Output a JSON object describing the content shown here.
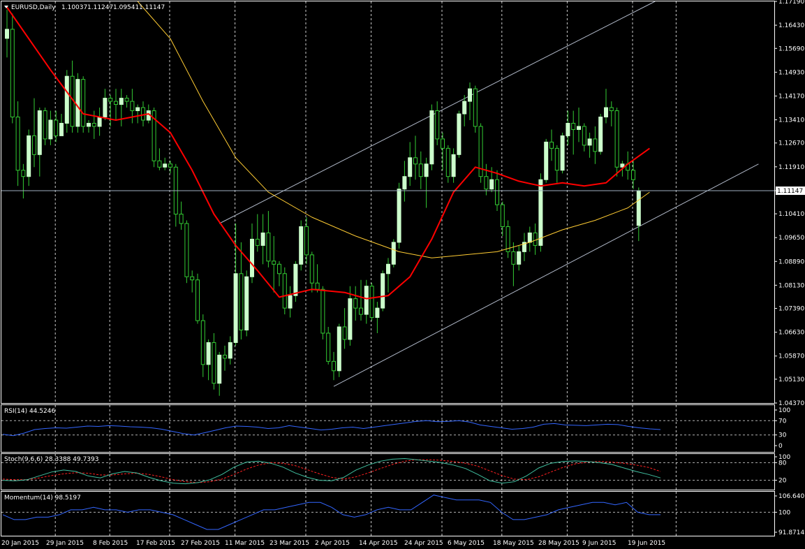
{
  "chart_data": {
    "type": "candlestick",
    "symbol_title": "EURUSD,Daily",
    "ohlc_readout": [
      "1.10037",
      "1.11247",
      "1.09541",
      "1.11147"
    ],
    "current_price": "1.11147",
    "y_ticks": [
      "1.17190",
      "1.16430",
      "1.15690",
      "1.14930",
      "1.14170",
      "1.13410",
      "1.12670",
      "1.11910",
      "1.11147",
      "1.10410",
      "1.09650",
      "1.08890",
      "1.08130",
      "1.07390",
      "1.06630",
      "1.05870",
      "1.05130",
      "1.04370"
    ],
    "y_range": [
      1.0437,
      1.1719
    ],
    "x_labels": [
      "20 Jan 2015",
      "29 Jan 2015",
      "8 Feb 2015",
      "17 Feb 2015",
      "27 Feb 2015",
      "11 Mar 2015",
      "23 Mar 2015",
      "2 Apr 2015",
      "14 Apr 2015",
      "24 Apr 2015",
      "6 May 2015",
      "18 May 2015",
      "28 May 2015",
      "9 Jun 2015",
      "19 Jun 2015"
    ],
    "bull_color": "#ccffcc",
    "bear_color": "#ccffcc",
    "wick_color": "#33cc33",
    "grid_color": "#ffffff",
    "ma_fast_color": "#ff0000",
    "ma_slow_color": "#ffcc33",
    "channel_color": "#b0b8c8",
    "candles": [
      [
        1.1601,
        1.1693,
        1.154,
        1.163
      ],
      [
        1.163,
        1.168,
        1.133,
        1.135
      ],
      [
        1.135,
        1.14,
        1.113,
        1.118
      ],
      [
        1.118,
        1.12,
        1.109,
        1.116
      ],
      [
        1.116,
        1.131,
        1.113,
        1.129
      ],
      [
        1.129,
        1.141,
        1.119,
        1.123
      ],
      [
        1.123,
        1.138,
        1.116,
        1.137
      ],
      [
        1.137,
        1.138,
        1.126,
        1.128
      ],
      [
        1.128,
        1.137,
        1.126,
        1.134
      ],
      [
        1.134,
        1.137,
        1.127,
        1.129
      ],
      [
        1.129,
        1.136,
        1.129,
        1.133
      ],
      [
        1.133,
        1.15,
        1.13,
        1.148
      ],
      [
        1.148,
        1.153,
        1.13,
        1.132
      ],
      [
        1.132,
        1.149,
        1.13,
        1.147
      ],
      [
        1.147,
        1.148,
        1.13,
        1.132
      ],
      [
        1.132,
        1.134,
        1.13,
        1.133
      ],
      [
        1.133,
        1.137,
        1.128,
        1.132
      ],
      [
        1.132,
        1.138,
        1.129,
        1.135
      ],
      [
        1.135,
        1.144,
        1.134,
        1.141
      ],
      [
        1.141,
        1.142,
        1.132,
        1.14
      ],
      [
        1.14,
        1.144,
        1.134,
        1.139
      ],
      [
        1.139,
        1.144,
        1.132,
        1.141
      ],
      [
        1.141,
        1.142,
        1.138,
        1.14
      ],
      [
        1.14,
        1.144,
        1.133,
        1.137
      ],
      [
        1.137,
        1.139,
        1.133,
        1.138
      ],
      [
        1.138,
        1.14,
        1.132,
        1.134
      ],
      [
        1.134,
        1.139,
        1.133,
        1.137
      ],
      [
        1.137,
        1.138,
        1.119,
        1.121
      ],
      [
        1.121,
        1.125,
        1.118,
        1.119
      ],
      [
        1.119,
        1.122,
        1.118,
        1.12
      ],
      [
        1.12,
        1.121,
        1.117,
        1.119
      ],
      [
        1.119,
        1.12,
        1.1,
        1.104
      ],
      [
        1.104,
        1.108,
        1.099,
        1.101
      ],
      [
        1.101,
        1.102,
        1.082,
        1.084
      ],
      [
        1.084,
        1.086,
        1.079,
        1.083
      ],
      [
        1.083,
        1.085,
        1.069,
        1.07
      ],
      [
        1.07,
        1.072,
        1.052,
        1.056
      ],
      [
        1.056,
        1.064,
        1.051,
        1.063
      ],
      [
        1.063,
        1.066,
        1.048,
        1.05
      ],
      [
        1.05,
        1.06,
        1.046,
        1.059
      ],
      [
        1.059,
        1.062,
        1.054,
        1.058
      ],
      [
        1.058,
        1.065,
        1.056,
        1.063
      ],
      [
        1.063,
        1.101,
        1.062,
        1.085
      ],
      [
        1.085,
        1.095,
        1.064,
        1.067
      ],
      [
        1.067,
        1.086,
        1.065,
        1.084
      ],
      [
        1.084,
        1.101,
        1.082,
        1.096
      ],
      [
        1.096,
        1.104,
        1.092,
        1.094
      ],
      [
        1.094,
        1.104,
        1.088,
        1.098
      ],
      [
        1.098,
        1.105,
        1.087,
        1.089
      ],
      [
        1.089,
        1.097,
        1.079,
        1.088
      ],
      [
        1.088,
        1.089,
        1.081,
        1.085
      ],
      [
        1.085,
        1.087,
        1.072,
        1.074
      ],
      [
        1.074,
        1.081,
        1.071,
        1.078
      ],
      [
        1.078,
        1.089,
        1.076,
        1.088
      ],
      [
        1.088,
        1.102,
        1.086,
        1.1
      ],
      [
        1.1,
        1.103,
        1.088,
        1.091
      ],
      [
        1.091,
        1.092,
        1.079,
        1.082
      ],
      [
        1.082,
        1.088,
        1.079,
        1.08
      ],
      [
        1.08,
        1.081,
        1.064,
        1.066
      ],
      [
        1.066,
        1.068,
        1.056,
        1.057
      ],
      [
        1.057,
        1.06,
        1.051,
        1.054
      ],
      [
        1.054,
        1.069,
        1.052,
        1.068
      ],
      [
        1.068,
        1.074,
        1.061,
        1.064
      ],
      [
        1.064,
        1.081,
        1.062,
        1.077
      ],
      [
        1.077,
        1.081,
        1.07,
        1.074
      ],
      [
        1.074,
        1.083,
        1.07,
        1.072
      ],
      [
        1.072,
        1.083,
        1.069,
        1.081
      ],
      [
        1.081,
        1.082,
        1.07,
        1.071
      ],
      [
        1.071,
        1.076,
        1.066,
        1.074
      ],
      [
        1.074,
        1.086,
        1.073,
        1.085
      ],
      [
        1.085,
        1.09,
        1.079,
        1.088
      ],
      [
        1.088,
        1.096,
        1.087,
        1.095
      ],
      [
        1.095,
        1.114,
        1.093,
        1.112
      ],
      [
        1.112,
        1.121,
        1.108,
        1.116
      ],
      [
        1.116,
        1.127,
        1.113,
        1.122
      ],
      [
        1.122,
        1.129,
        1.115,
        1.12
      ],
      [
        1.12,
        1.124,
        1.112,
        1.116
      ],
      [
        1.116,
        1.122,
        1.106,
        1.12
      ],
      [
        1.12,
        1.139,
        1.118,
        1.137
      ],
      [
        1.137,
        1.14,
        1.126,
        1.128
      ],
      [
        1.128,
        1.13,
        1.118,
        1.125
      ],
      [
        1.125,
        1.126,
        1.114,
        1.116
      ],
      [
        1.116,
        1.125,
        1.114,
        1.123
      ],
      [
        1.123,
        1.137,
        1.122,
        1.136
      ],
      [
        1.136,
        1.142,
        1.132,
        1.14
      ],
      [
        1.14,
        1.146,
        1.134,
        1.144
      ],
      [
        1.144,
        1.145,
        1.13,
        1.132
      ],
      [
        1.132,
        1.133,
        1.114,
        1.116
      ],
      [
        1.116,
        1.12,
        1.11,
        1.112
      ],
      [
        1.112,
        1.119,
        1.111,
        1.115
      ],
      [
        1.115,
        1.118,
        1.105,
        1.107
      ],
      [
        1.107,
        1.108,
        1.097,
        1.1
      ],
      [
        1.1,
        1.102,
        1.09,
        1.092
      ],
      [
        1.092,
        1.095,
        1.081,
        1.088
      ],
      [
        1.088,
        1.094,
        1.086,
        1.092
      ],
      [
        1.092,
        1.098,
        1.089,
        1.095
      ],
      [
        1.095,
        1.1,
        1.092,
        1.098
      ],
      [
        1.098,
        1.101,
        1.091,
        1.094
      ],
      [
        1.094,
        1.117,
        1.092,
        1.115
      ],
      [
        1.115,
        1.128,
        1.114,
        1.127
      ],
      [
        1.127,
        1.131,
        1.121,
        1.125
      ],
      [
        1.125,
        1.126,
        1.114,
        1.118
      ],
      [
        1.118,
        1.13,
        1.117,
        1.129
      ],
      [
        1.129,
        1.137,
        1.126,
        1.133
      ],
      [
        1.133,
        1.137,
        1.123,
        1.131
      ],
      [
        1.131,
        1.138,
        1.127,
        1.132
      ],
      [
        1.132,
        1.133,
        1.124,
        1.126
      ],
      [
        1.126,
        1.13,
        1.122,
        1.128
      ],
      [
        1.128,
        1.132,
        1.12,
        1.124
      ],
      [
        1.124,
        1.136,
        1.123,
        1.135
      ],
      [
        1.135,
        1.144,
        1.133,
        1.138
      ],
      [
        1.138,
        1.14,
        1.132,
        1.137
      ],
      [
        1.137,
        1.138,
        1.116,
        1.119
      ],
      [
        1.119,
        1.121,
        1.116,
        1.12
      ],
      [
        1.12,
        1.124,
        1.115,
        1.118
      ],
      [
        1.118,
        1.121,
        1.112,
        1.115
      ],
      [
        1.1004,
        1.1125,
        1.0954,
        1.1115
      ]
    ],
    "ma_fast": [
      [
        0,
        1.17
      ],
      [
        8,
        1.15
      ],
      [
        14,
        1.136
      ],
      [
        20,
        1.134
      ],
      [
        26,
        1.136
      ],
      [
        30,
        1.13
      ],
      [
        34,
        1.118
      ],
      [
        38,
        1.104
      ],
      [
        42,
        1.094
      ],
      [
        46,
        1.086
      ],
      [
        50,
        1.0775
      ],
      [
        56,
        1.08
      ],
      [
        62,
        1.079
      ],
      [
        66,
        1.077
      ],
      [
        70,
        1.078
      ],
      [
        74,
        1.084
      ],
      [
        78,
        1.096
      ],
      [
        82,
        1.111
      ],
      [
        86,
        1.119
      ],
      [
        90,
        1.117
      ],
      [
        94,
        1.1145
      ],
      [
        98,
        1.113
      ],
      [
        102,
        1.114
      ],
      [
        106,
        1.113
      ],
      [
        110,
        1.114
      ],
      [
        114,
        1.12
      ],
      [
        118,
        1.125
      ]
    ],
    "ma_slow": [
      [
        24,
        1.1719
      ],
      [
        30,
        1.16
      ],
      [
        36,
        1.14
      ],
      [
        42,
        1.122
      ],
      [
        48,
        1.111
      ],
      [
        56,
        1.103
      ],
      [
        64,
        1.097
      ],
      [
        72,
        1.092
      ],
      [
        78,
        1.09
      ],
      [
        84,
        1.091
      ],
      [
        90,
        1.092
      ],
      [
        96,
        1.095
      ],
      [
        102,
        1.099
      ],
      [
        108,
        1.102
      ],
      [
        114,
        1.106
      ],
      [
        118,
        1.111
      ]
    ],
    "channel": {
      "upper": [
        [
          39,
          1.101
        ],
        [
          119,
          1.1719
        ]
      ],
      "lower": [
        [
          60,
          1.049
        ],
        [
          138,
          1.12
        ]
      ]
    },
    "rsi": {
      "title": "RSI(14) 44.5246",
      "ticks": [
        "100",
        "70",
        "30",
        "0"
      ],
      "levels": [
        70,
        30
      ],
      "color": "#3366ff",
      "values": [
        32,
        28,
        35,
        45,
        48,
        50,
        49,
        52,
        55,
        54,
        56,
        55,
        53,
        52,
        50,
        46,
        40,
        34,
        30,
        36,
        43,
        50,
        55,
        54,
        52,
        48,
        50,
        56,
        52,
        48,
        44,
        46,
        50,
        52,
        48,
        52,
        56,
        60,
        64,
        68,
        70,
        67,
        68,
        70,
        66,
        58,
        54,
        50,
        46,
        48,
        52,
        60,
        62,
        58,
        57,
        56,
        58,
        60,
        59,
        54,
        50,
        47,
        45
      ]
    },
    "stoch": {
      "title": "Stoch(9,6,6) 28.3388 49.7393",
      "ticks": [
        "100",
        "80",
        "20"
      ],
      "levels": [
        80,
        20
      ],
      "main_color": "#40c0a0",
      "signal_color": "#ff2020",
      "main": [
        20,
        18,
        22,
        35,
        48,
        55,
        50,
        35,
        28,
        42,
        50,
        45,
        30,
        18,
        10,
        8,
        12,
        22,
        40,
        65,
        82,
        85,
        78,
        65,
        45,
        30,
        20,
        18,
        30,
        55,
        72,
        85,
        92,
        94,
        90,
        85,
        80,
        72,
        60,
        40,
        18,
        10,
        15,
        35,
        62,
        78,
        84,
        86,
        84,
        80,
        74,
        62,
        50,
        40,
        28
      ],
      "signal": [
        24,
        22,
        22,
        28,
        36,
        42,
        46,
        44,
        38,
        38,
        42,
        44,
        40,
        32,
        22,
        15,
        12,
        15,
        24,
        40,
        58,
        72,
        80,
        78,
        70,
        56,
        42,
        30,
        24,
        32,
        45,
        60,
        74,
        85,
        90,
        90,
        88,
        84,
        78,
        68,
        52,
        36,
        24,
        22,
        32,
        48,
        64,
        76,
        82,
        84,
        82,
        78,
        72,
        64,
        50
      ]
    },
    "momentum": {
      "title": "Momentum(14) 98.5197",
      "ticks": [
        "106.6401",
        "100",
        "91.8714"
      ],
      "ylim": [
        91.8714,
        106.6401
      ],
      "level": 100,
      "color": "#3366ff",
      "values": [
        99,
        97,
        97,
        98,
        98,
        99,
        101,
        101,
        102,
        101,
        101,
        100,
        101,
        101,
        100,
        99,
        97,
        95,
        93,
        93,
        95,
        97,
        99,
        101,
        101,
        102,
        103,
        104,
        104,
        102,
        99,
        98,
        99,
        101,
        102,
        101,
        101,
        104,
        107,
        106,
        105,
        105,
        105,
        104,
        100,
        97,
        97,
        98,
        99,
        101,
        102,
        103,
        104,
        104,
        103,
        104,
        100,
        99,
        99
      ]
    }
  }
}
